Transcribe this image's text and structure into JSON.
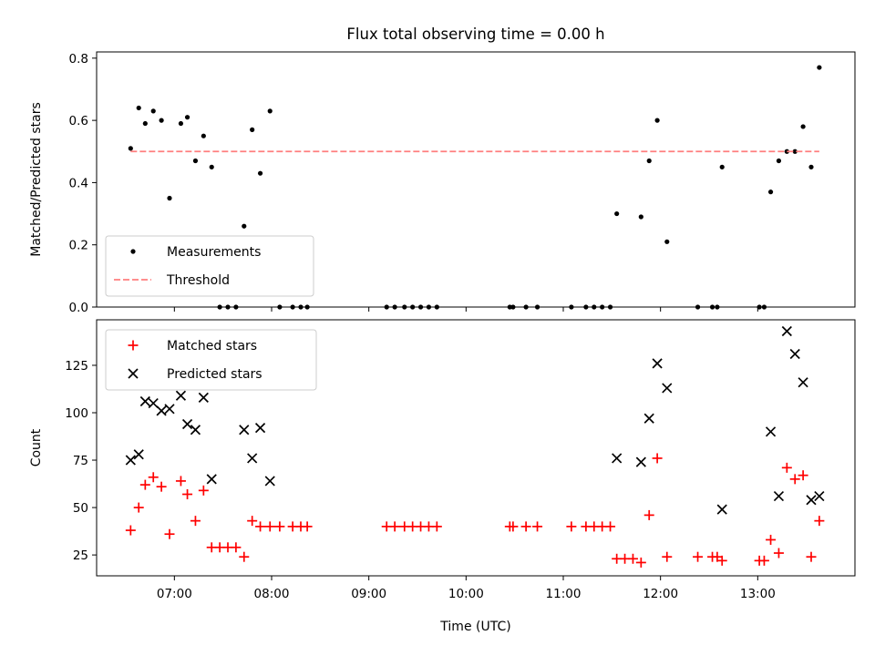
{
  "figure": {
    "title": "Flux total observing time = 0.00 h",
    "xlabel": "Time (UTC)",
    "xticks": [
      "07:00",
      "08:00",
      "09:00",
      "10:00",
      "11:00",
      "12:00",
      "13:00"
    ]
  },
  "chart_data": [
    {
      "type": "scatter",
      "title": "Flux total observing time = 0.00 h",
      "ylabel": "Matched/Predicted stars",
      "xlabel": "",
      "x_unit": "hours UTC",
      "xlim": [
        "06:12",
        "14:00"
      ],
      "ylim": [
        0,
        0.82
      ],
      "yticks": [
        "0.0",
        "0.2",
        "0.4",
        "0.6",
        "0.8"
      ],
      "legend": "lower-left",
      "series": [
        {
          "name": "Measurements",
          "color": "#000000",
          "marker": "dot",
          "points": [
            [
              "06:33",
              0.51
            ],
            [
              "06:38",
              0.64
            ],
            [
              "06:42",
              0.59
            ],
            [
              "06:47",
              0.63
            ],
            [
              "06:52",
              0.6
            ],
            [
              "06:57",
              0.35
            ],
            [
              "07:04",
              0.59
            ],
            [
              "07:08",
              0.61
            ],
            [
              "07:13",
              0.47
            ],
            [
              "07:18",
              0.55
            ],
            [
              "07:23",
              0.45
            ],
            [
              "07:28",
              0.0
            ],
            [
              "07:33",
              0.0
            ],
            [
              "07:38",
              0.0
            ],
            [
              "07:43",
              0.26
            ],
            [
              "07:48",
              0.57
            ],
            [
              "07:53",
              0.43
            ],
            [
              "07:59",
              0.63
            ],
            [
              "08:05",
              0.0
            ],
            [
              "08:13",
              0.0
            ],
            [
              "08:18",
              0.0
            ],
            [
              "08:22",
              0.0
            ],
            [
              "09:11",
              0.0
            ],
            [
              "09:16",
              0.0
            ],
            [
              "09:22",
              0.0
            ],
            [
              "09:27",
              0.0
            ],
            [
              "09:32",
              0.0
            ],
            [
              "09:37",
              0.0
            ],
            [
              "09:42",
              0.0
            ],
            [
              "10:27",
              0.0
            ],
            [
              "10:29",
              0.0
            ],
            [
              "10:37",
              0.0
            ],
            [
              "10:44",
              0.0
            ],
            [
              "11:05",
              0.0
            ],
            [
              "11:14",
              0.0
            ],
            [
              "11:19",
              0.0
            ],
            [
              "11:24",
              0.0
            ],
            [
              "11:29",
              0.0
            ],
            [
              "11:33",
              0.3
            ],
            [
              "11:48",
              0.29
            ],
            [
              "11:53",
              0.47
            ],
            [
              "11:58",
              0.6
            ],
            [
              "12:04",
              0.21
            ],
            [
              "12:23",
              0.0
            ],
            [
              "12:32",
              0.0
            ],
            [
              "12:35",
              0.0
            ],
            [
              "12:38",
              0.45
            ],
            [
              "13:01",
              0.0
            ],
            [
              "13:04",
              0.0
            ],
            [
              "13:08",
              0.37
            ],
            [
              "13:13",
              0.47
            ],
            [
              "13:18",
              0.5
            ],
            [
              "13:23",
              0.5
            ],
            [
              "13:28",
              0.58
            ],
            [
              "13:33",
              0.45
            ],
            [
              "13:38",
              0.77
            ]
          ]
        },
        {
          "name": "Threshold",
          "color": "#ff7f7f",
          "marker": "dashed-line",
          "points": [
            [
              "06:33",
              0.5
            ],
            [
              "13:38",
              0.5
            ]
          ]
        }
      ]
    },
    {
      "type": "scatter",
      "title": "",
      "ylabel": "Count",
      "xlabel": "Time (UTC)",
      "x_unit": "hours UTC",
      "xlim": [
        "06:12",
        "14:00"
      ],
      "ylim": [
        14,
        149
      ],
      "yticks": [
        "25",
        "50",
        "75",
        "100",
        "125"
      ],
      "legend": "upper-left",
      "series": [
        {
          "name": "Matched stars",
          "color": "#ff0000",
          "marker": "plus",
          "points": [
            [
              "06:33",
              38
            ],
            [
              "06:38",
              50
            ],
            [
              "06:42",
              62
            ],
            [
              "06:47",
              66
            ],
            [
              "06:52",
              61
            ],
            [
              "06:57",
              36
            ],
            [
              "07:04",
              64
            ],
            [
              "07:08",
              57
            ],
            [
              "07:13",
              43
            ],
            [
              "07:18",
              59
            ],
            [
              "07:23",
              29
            ],
            [
              "07:28",
              29
            ],
            [
              "07:33",
              29
            ],
            [
              "07:38",
              29
            ],
            [
              "07:43",
              24
            ],
            [
              "07:48",
              43
            ],
            [
              "07:53",
              40
            ],
            [
              "07:59",
              40
            ],
            [
              "08:05",
              40
            ],
            [
              "08:13",
              40
            ],
            [
              "08:18",
              40
            ],
            [
              "08:22",
              40
            ],
            [
              "09:11",
              40
            ],
            [
              "09:16",
              40
            ],
            [
              "09:22",
              40
            ],
            [
              "09:27",
              40
            ],
            [
              "09:32",
              40
            ],
            [
              "09:37",
              40
            ],
            [
              "09:42",
              40
            ],
            [
              "10:27",
              40
            ],
            [
              "10:29",
              40
            ],
            [
              "10:37",
              40
            ],
            [
              "10:44",
              40
            ],
            [
              "11:05",
              40
            ],
            [
              "11:14",
              40
            ],
            [
              "11:19",
              40
            ],
            [
              "11:24",
              40
            ],
            [
              "11:29",
              40
            ],
            [
              "11:33",
              23
            ],
            [
              "11:38",
              23
            ],
            [
              "11:43",
              23
            ],
            [
              "11:48",
              21
            ],
            [
              "11:53",
              46
            ],
            [
              "11:58",
              76
            ],
            [
              "12:04",
              24
            ],
            [
              "12:23",
              24
            ],
            [
              "12:32",
              24
            ],
            [
              "12:35",
              24
            ],
            [
              "12:38",
              22
            ],
            [
              "13:01",
              22
            ],
            [
              "13:04",
              22
            ],
            [
              "13:08",
              33
            ],
            [
              "13:13",
              26
            ],
            [
              "13:18",
              71
            ],
            [
              "13:23",
              65
            ],
            [
              "13:28",
              67
            ],
            [
              "13:33",
              24
            ],
            [
              "13:38",
              43
            ]
          ]
        },
        {
          "name": "Predicted stars",
          "color": "#000000",
          "marker": "x",
          "points": [
            [
              "06:33",
              75
            ],
            [
              "06:38",
              78
            ],
            [
              "06:42",
              106
            ],
            [
              "06:47",
              105
            ],
            [
              "06:52",
              101
            ],
            [
              "06:57",
              102
            ],
            [
              "07:04",
              109
            ],
            [
              "07:08",
              94
            ],
            [
              "07:13",
              91
            ],
            [
              "07:18",
              108
            ],
            [
              "07:23",
              65
            ],
            [
              "07:43",
              91
            ],
            [
              "07:48",
              76
            ],
            [
              "07:53",
              92
            ],
            [
              "07:59",
              64
            ],
            [
              "11:33",
              76
            ],
            [
              "11:48",
              74
            ],
            [
              "11:53",
              97
            ],
            [
              "11:58",
              126
            ],
            [
              "12:04",
              113
            ],
            [
              "12:38",
              49
            ],
            [
              "13:08",
              90
            ],
            [
              "13:13",
              56
            ],
            [
              "13:18",
              143
            ],
            [
              "13:23",
              131
            ],
            [
              "13:28",
              116
            ],
            [
              "13:33",
              54
            ],
            [
              "13:38",
              56
            ]
          ]
        }
      ]
    }
  ]
}
